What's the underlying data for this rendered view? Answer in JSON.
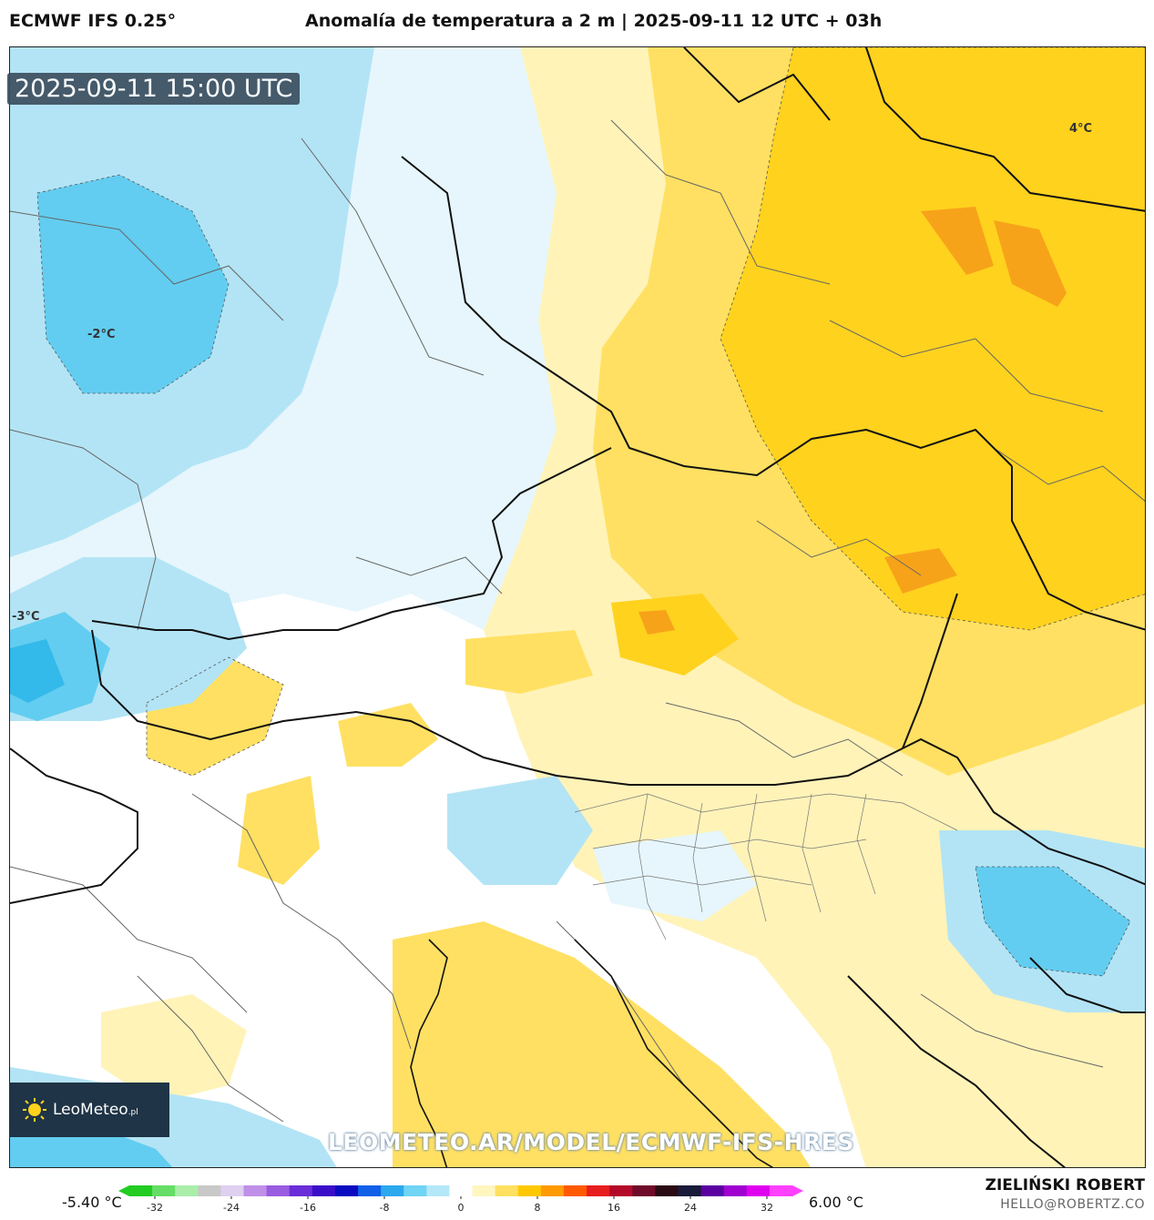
{
  "header": {
    "model": "ECMWF IFS 0.25°",
    "title": "Anomalía de temperatura a 2 m | 2025-09-11 12 UTC + 03h"
  },
  "map": {
    "valid_time": "2025-09-11 15:00 UTC",
    "labels": {
      "minus2": "-2°C",
      "minus3": "-3°C",
      "plus4": "4°C"
    },
    "watermark": "LEOMETEO.AR/MODEL/ECMWF-IFS-HRES",
    "logo_text": "LeoMeteo",
    "logo_suffix": ".pl",
    "colors": {
      "cold_light": "#e6f6fc",
      "cold_mid": "#b3e4f5",
      "cold_strong": "#62cdf0",
      "cold_deep": "#33b9ea",
      "warm_light": "#fff3b8",
      "warm_mid": "#ffe062",
      "warm_strong": "#ffd21e",
      "warm_deep": "#f7a31a"
    }
  },
  "colorbar": {
    "min_label": "-5.40 °C",
    "max_label": "6.00 °C",
    "ticks": [
      "-32",
      "-24",
      "-16",
      "-8",
      "0",
      "8",
      "16",
      "24",
      "32"
    ],
    "colors": [
      "#22cc22",
      "#66dd66",
      "#aaeeaa",
      "#c8c8c8",
      "#e0d0f0",
      "#c090e8",
      "#9a5ce0",
      "#6a2ed8",
      "#3a0ec8",
      "#0a0ac0",
      "#1060e8",
      "#2ca8ee",
      "#70d4f4",
      "#b4e8f8",
      "#ffffff",
      "#fff6c0",
      "#ffe060",
      "#ffc800",
      "#ff9a00",
      "#ff5a00",
      "#e81e1e",
      "#b40a2a",
      "#700a2a",
      "#2a0a14",
      "#1a1a3a",
      "#5a00a0",
      "#a000d0",
      "#e000f0",
      "#ff40ff"
    ]
  },
  "footer": {
    "author": "ZIELIŃSKI ROBERT",
    "contact": "HELLO@ROBERTZ.CO"
  }
}
